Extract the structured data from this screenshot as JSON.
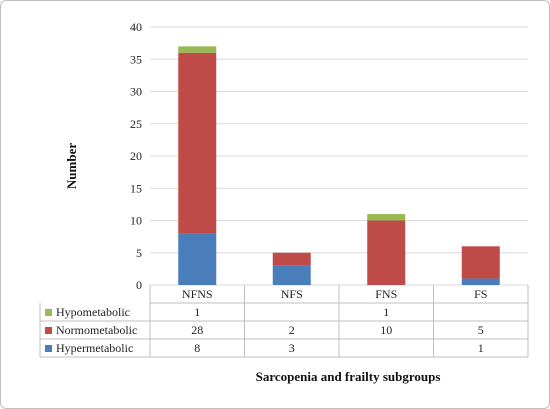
{
  "chart_data": {
    "type": "bar",
    "stacked": true,
    "categories": [
      "NFNS",
      "NFS",
      "FNS",
      "FS"
    ],
    "series": [
      {
        "name": "Hypermetabolic",
        "color": "#4a7ebb",
        "values": [
          8,
          3,
          null,
          1
        ]
      },
      {
        "name": "Normometabolic",
        "color": "#be4b48",
        "values": [
          28,
          2,
          10,
          5
        ]
      },
      {
        "name": "Hypometabolic",
        "color": "#98b954",
        "values": [
          1,
          null,
          1,
          null
        ]
      }
    ],
    "table_row_order": [
      "Hypometabolic",
      "Normometabolic",
      "Hypermetabolic"
    ],
    "ylabel": "Number",
    "xlabel": "Sarcopenia and frailty subgroups",
    "ylim": [
      0,
      40
    ],
    "yticks": [
      0,
      5,
      10,
      15,
      20,
      25,
      30,
      35,
      40
    ],
    "grid": true,
    "legend": "data-table"
  }
}
